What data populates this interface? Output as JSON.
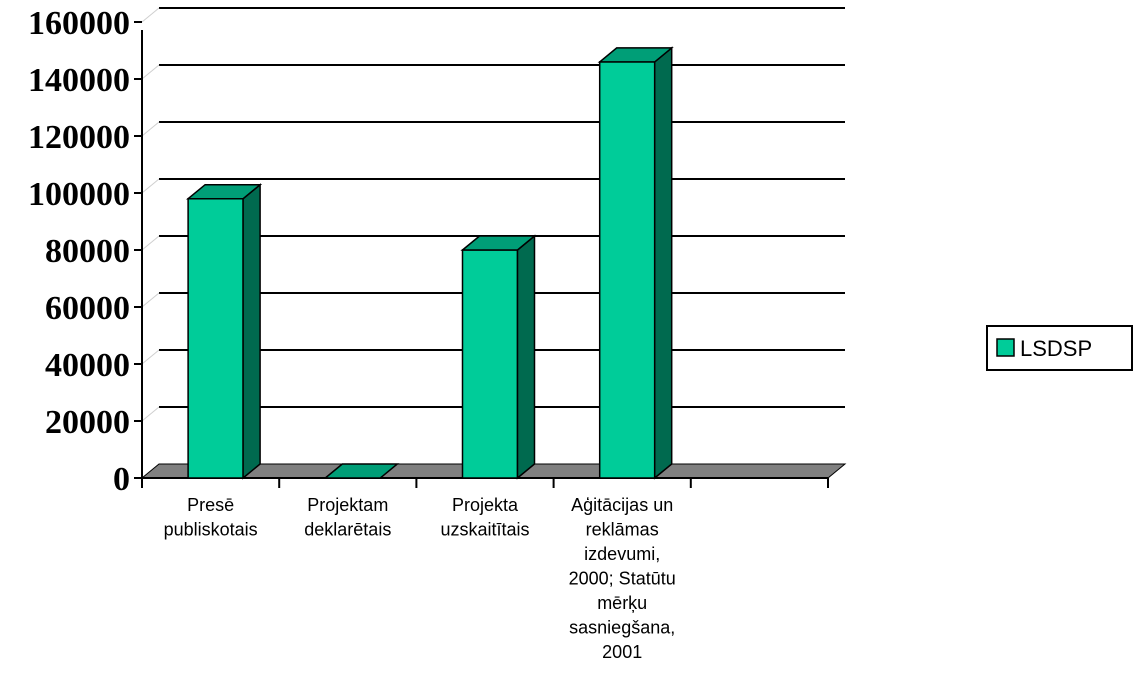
{
  "chart_data": {
    "type": "bar",
    "title": "",
    "xlabel": "",
    "ylabel": "",
    "ylim": [
      0,
      160000
    ],
    "yticks": [
      0,
      20000,
      40000,
      60000,
      80000,
      100000,
      120000,
      140000,
      160000
    ],
    "grid": true,
    "legend_position": "right",
    "categories": [
      "Presē publiskotais",
      "Projektam deklarētais",
      "Projekta uzskaitītais",
      "Aģitācijas un reklāmas izdevumi, 2000; Statūtu mērķu sasniegšana, 2001"
    ],
    "category_lines": [
      [
        "Presē",
        "publiskotais"
      ],
      [
        "Projektam",
        "deklarētais"
      ],
      [
        "Projekta",
        "uzskaitītais"
      ],
      [
        "Aģitācijas un",
        "reklāmas",
        "izdevumi,",
        "2000; Statūtu",
        "mērķu",
        "sasniegšana,",
        "2001"
      ]
    ],
    "series": [
      {
        "name": "LSDSP",
        "values": [
          98000,
          0,
          80000,
          146000
        ]
      }
    ],
    "colors": {
      "bar_front": "#00cc99",
      "bar_side": "#006a4f",
      "bar_top": "#009e77",
      "floor": "#808080"
    }
  }
}
